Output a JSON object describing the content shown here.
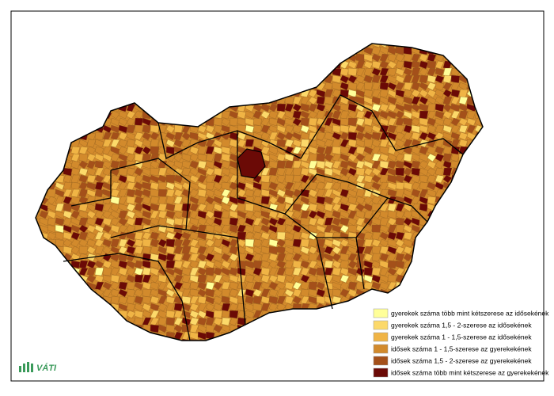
{
  "logo": {
    "text": "VÁTI"
  },
  "legend": {
    "items": [
      {
        "label": "gyerekek száma több mint kétszerese az idősekének",
        "color": "#ffff99"
      },
      {
        "label": "gyerekek száma 1,5 - 2-szerese az idősekének",
        "color": "#fcd96a"
      },
      {
        "label": "gyerekek száma 1 - 1,5-szerese az idősekének",
        "color": "#f0b445"
      },
      {
        "label": "idősek száma 1 - 1,5-szerese az gyerekekének",
        "color": "#d28a2c"
      },
      {
        "label": "idősek száma 1,5 - 2-szerese az gyerekekének",
        "color": "#a4501a"
      },
      {
        "label": "idősek száma több mint kétszerese az gyerekekének",
        "color": "#6b0a06"
      }
    ]
  }
}
